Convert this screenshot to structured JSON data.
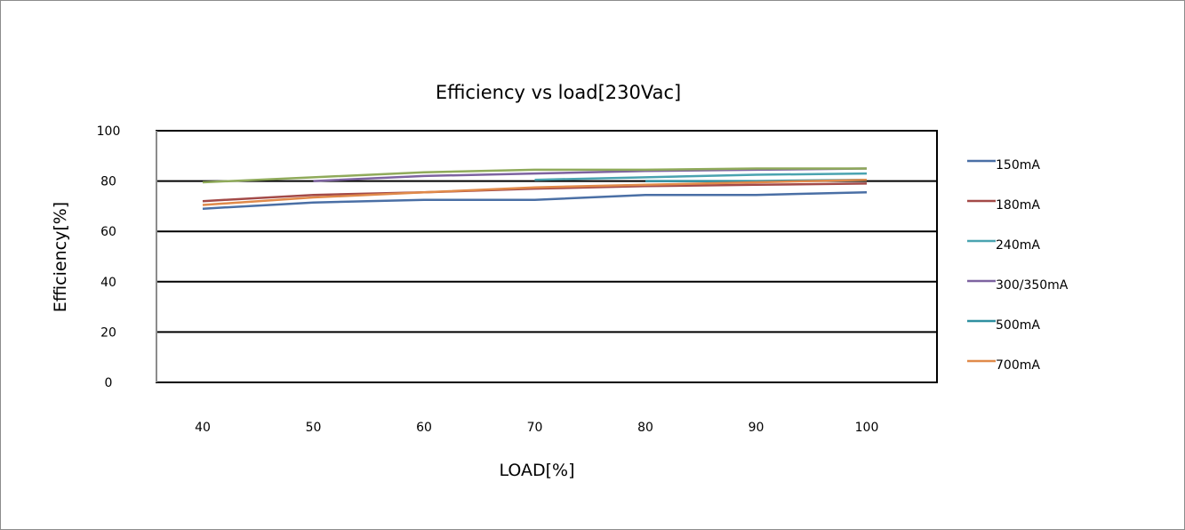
{
  "chart_data": {
    "type": "line",
    "title": "Efficiency vs load[230Vac]",
    "xlabel": "LOAD[%]",
    "ylabel": "Efficiency[%]",
    "ylim": [
      0,
      100
    ],
    "y_ticks": [
      "0",
      "20",
      "40",
      "60",
      "80",
      "100"
    ],
    "x_ticks": [
      "40",
      "50",
      "60",
      "70",
      "80",
      "90",
      "100"
    ],
    "grid": "horizontal major gridlines",
    "legend_position": "right",
    "x": [
      40,
      50,
      60,
      70,
      80,
      90,
      100
    ],
    "series": [
      {
        "name": "150mA",
        "color": "#4a6fa5",
        "values": [
          69,
          71.5,
          72.5,
          72.5,
          74.5,
          74.5,
          75.5
        ]
      },
      {
        "name": "180mA",
        "color": "#a34a48",
        "values": [
          72,
          74.5,
          75.5,
          77,
          78,
          78.5,
          79
        ]
      },
      {
        "name": "240mA",
        "color": "#4aa3b0",
        "values": [
          null,
          null,
          null,
          80.5,
          81.5,
          82.5,
          83
        ]
      },
      {
        "name": "300/350mA",
        "color": "#7d63a0",
        "values": [
          null,
          80,
          82,
          83,
          84,
          84.5,
          85
        ]
      },
      {
        "name": "500mA",
        "color": "#2f8fa0",
        "values": [
          null,
          null,
          null,
          null,
          80,
          80,
          80.5
        ]
      },
      {
        "name": "700mA",
        "color": "#e08a4a",
        "values": [
          70.5,
          73.5,
          75.5,
          77.5,
          78.5,
          79.5,
          80.5
        ]
      },
      {
        "name": "",
        "color": "#8faa5a",
        "values": [
          79.5,
          81.5,
          83.5,
          84.5,
          84.5,
          85,
          85
        ]
      }
    ]
  }
}
